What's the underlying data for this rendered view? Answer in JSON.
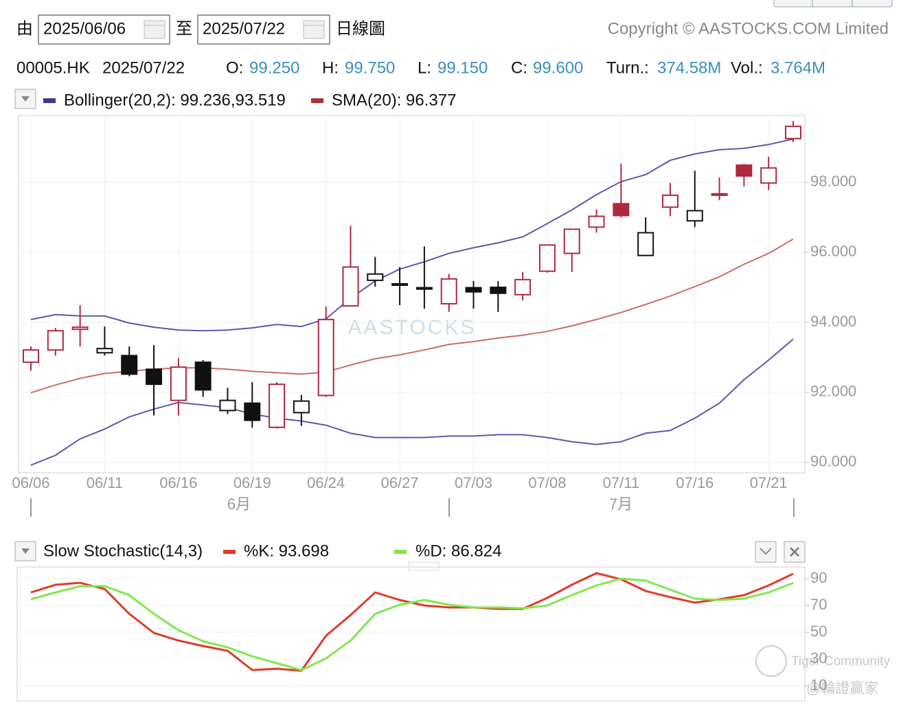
{
  "toolbar": {
    "from_label": "由",
    "from_date": "2025/06/06",
    "to_label": "至",
    "to_date": "2025/07/22",
    "period": "日線圖",
    "copyright": "Copyright © AASTOCKS.COM Limited"
  },
  "quote": {
    "symbol": "00005.HK",
    "date": "2025/07/22",
    "open_label": "O:",
    "open": "99.250",
    "high_label": "H:",
    "high": "99.750",
    "low_label": "L:",
    "low": "99.150",
    "close_label": "C:",
    "close": "99.600",
    "turnover_label": "Turn.:",
    "turnover": "374.58M",
    "volume_label": "Vol.:",
    "volume": "3.764M"
  },
  "watermarks": [
    "AASTOCKS",
    "Tiger Community",
    "@輪證贏家"
  ],
  "chart_data": [
    {
      "type": "candlestick",
      "categories": [
        "06/06",
        null,
        null,
        "06/11",
        null,
        null,
        "06/16",
        null,
        null,
        "06/19",
        null,
        null,
        "06/24",
        null,
        null,
        "06/27",
        null,
        null,
        "07/03",
        null,
        null,
        "07/08",
        null,
        null,
        "07/11",
        null,
        null,
        "07/16",
        null,
        null,
        "07/21",
        null
      ],
      "month_labels": [
        "6月",
        "7月"
      ],
      "open": [
        92.86,
        93.21,
        93.8,
        93.13,
        93.05,
        92.66,
        91.77,
        92.86,
        91.48,
        91.69,
        91.0,
        91.42,
        91.91,
        94.47,
        95.2,
        95.06,
        94.95,
        94.53,
        94.99,
        95.0,
        94.79,
        95.46,
        95.97,
        96.72,
        97.39,
        95.91,
        97.29,
        96.9,
        97.63,
        98.49,
        97.98,
        99.25
      ],
      "high": [
        93.31,
        93.84,
        94.49,
        93.88,
        93.31,
        93.35,
        92.98,
        92.92,
        92.13,
        92.29,
        92.29,
        91.93,
        94.45,
        96.76,
        95.87,
        95.58,
        96.17,
        95.38,
        95.18,
        95.18,
        95.44,
        96.23,
        96.68,
        97.23,
        98.53,
        97.0,
        97.98,
        98.33,
        98.14,
        98.53,
        98.73,
        99.75
      ],
      "low": [
        92.62,
        93.05,
        93.31,
        93.05,
        92.46,
        91.34,
        91.34,
        91.87,
        91.38,
        90.99,
        90.97,
        91.04,
        91.87,
        94.45,
        95.02,
        94.49,
        94.39,
        94.3,
        94.39,
        94.3,
        94.63,
        95.42,
        95.44,
        96.56,
        97.0,
        95.91,
        97.03,
        96.72,
        97.49,
        97.88,
        97.78,
        99.15
      ],
      "close": [
        93.21,
        93.76,
        93.86,
        93.25,
        92.52,
        92.23,
        92.72,
        92.07,
        91.77,
        91.2,
        92.23,
        91.75,
        94.08,
        95.58,
        95.38,
        95.1,
        94.99,
        95.24,
        94.87,
        94.83,
        95.22,
        96.21,
        96.66,
        97.03,
        97.05,
        96.56,
        97.63,
        97.19,
        97.67,
        98.18,
        98.41,
        99.6
      ],
      "up_color": "#b0283e",
      "down_color": "#111111",
      "series": [
        {
          "name": "Bollinger(20,2): 99.236,93.519",
          "color": "#3b3b8f",
          "line_color": "#5a58a8",
          "upper": [
            94.08,
            94.22,
            94.18,
            94.18,
            93.98,
            93.86,
            93.78,
            93.76,
            93.78,
            93.84,
            93.94,
            93.88,
            94.1,
            94.69,
            95.18,
            95.52,
            95.73,
            95.97,
            96.13,
            96.27,
            96.44,
            96.82,
            97.21,
            97.65,
            98.02,
            98.22,
            98.63,
            98.81,
            98.93,
            98.97,
            99.08,
            99.236
          ],
          "lower": [
            89.92,
            90.2,
            90.67,
            90.95,
            91.3,
            91.52,
            91.71,
            91.64,
            91.56,
            91.38,
            91.26,
            91.18,
            91.06,
            90.83,
            90.71,
            90.71,
            90.71,
            90.75,
            90.75,
            90.79,
            90.79,
            90.71,
            90.59,
            90.51,
            90.59,
            90.83,
            90.91,
            91.26,
            91.69,
            92.36,
            92.92,
            93.519
          ]
        },
        {
          "name": "SMA(20): 96.377",
          "color": "#a83535",
          "line_color": "#cc6b66",
          "values": [
            91.99,
            92.21,
            92.4,
            92.54,
            92.6,
            92.66,
            92.7,
            92.7,
            92.66,
            92.6,
            92.56,
            92.52,
            92.58,
            92.78,
            92.96,
            93.07,
            93.21,
            93.37,
            93.45,
            93.55,
            93.63,
            93.74,
            93.9,
            94.08,
            94.28,
            94.51,
            94.75,
            95.02,
            95.3,
            95.66,
            95.97,
            96.377
          ]
        }
      ],
      "ylim": [
        89.7,
        99.91
      ],
      "yticks": [
        {
          "value": 90,
          "label": "90.000"
        },
        {
          "value": 92,
          "label": "92.000"
        },
        {
          "value": 94,
          "label": "94.000"
        },
        {
          "value": 96,
          "label": "96.000"
        },
        {
          "value": 98,
          "label": "98.000"
        }
      ],
      "grid": true
    },
    {
      "type": "line",
      "title": "Slow Stochastic(14,3)",
      "series": [
        {
          "name": "%K: 93.698",
          "color": "#e23a2a",
          "values": [
            79.7,
            85.4,
            86.9,
            82.3,
            63.8,
            49.5,
            43.8,
            39.7,
            36.2,
            21.8,
            22.8,
            21.3,
            47.4,
            62.8,
            79.7,
            74.1,
            70.0,
            68.5,
            68.5,
            67.4,
            67.4,
            75.6,
            85.4,
            94.1,
            89.5,
            80.8,
            76.2,
            72.1,
            74.6,
            77.7,
            84.9,
            93.698
          ]
        },
        {
          "name": "%D: 86.824",
          "color": "#7fe84c",
          "values": [
            74.6,
            79.7,
            84.4,
            84.4,
            77.7,
            63.8,
            51.5,
            43.3,
            38.7,
            32.1,
            26.9,
            21.8,
            30.5,
            43.8,
            63.8,
            70.5,
            74.1,
            70.5,
            68.5,
            68.5,
            67.9,
            70.0,
            77.7,
            84.9,
            90.0,
            88.5,
            81.8,
            75.1,
            74.1,
            75.1,
            79.7,
            86.824
          ]
        }
      ],
      "ylim": [
        -1.3,
        98.7
      ],
      "yticks": [
        10,
        30,
        50,
        70,
        90
      ],
      "grid": true
    }
  ]
}
